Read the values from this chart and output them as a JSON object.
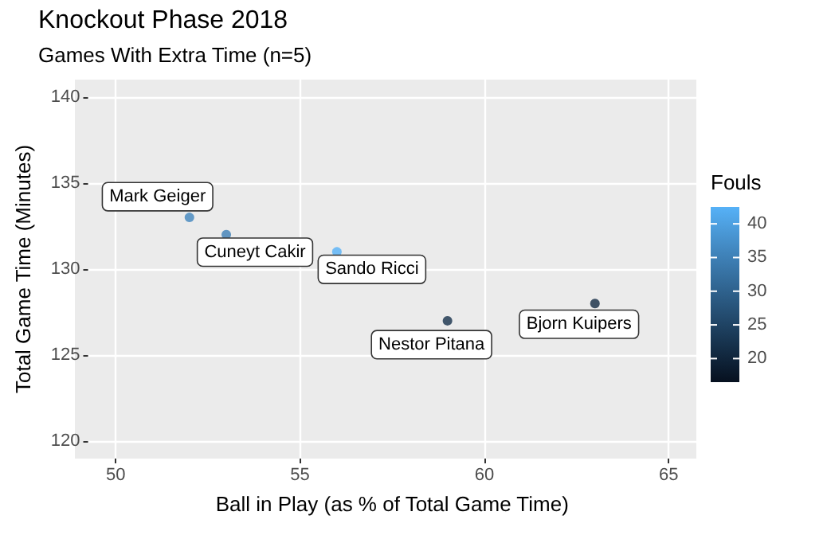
{
  "chart_data": {
    "type": "scatter",
    "title": "Knockout Phase 2018",
    "subtitle": "Games With Extra Time (n=5)",
    "xlabel": "Ball in Play (as % of Total Game Time)",
    "ylabel": "Total Game Time (Minutes)",
    "legend_title": "Fouls",
    "x": [
      52,
      53,
      56,
      59,
      63
    ],
    "values": [
      133,
      132,
      131,
      127,
      128
    ],
    "cvalues": [
      36,
      35,
      43,
      22,
      21
    ],
    "colors": [
      "#4186be",
      "#3e80b6",
      "#56b1f7",
      "#16314b",
      "#132b43"
    ],
    "clim": [
      16.5,
      42.5
    ],
    "cticks": [
      20,
      25,
      30,
      35,
      40
    ],
    "xlim": [
      49.25,
      65.75
    ],
    "xticks": [
      50,
      55,
      60,
      65
    ],
    "ylim": [
      119,
      141
    ],
    "yticks": [
      120,
      125,
      130,
      135,
      140
    ],
    "grid": true,
    "marker": "circle",
    "annotations": [
      {
        "text": "Mark Geiger",
        "x": 52,
        "y": 133
      },
      {
        "text": "Cuneyt Cakir",
        "x": 53,
        "y": 132
      },
      {
        "text": "Sando Ricci",
        "x": 56,
        "y": 131
      },
      {
        "text": "Nestor Pitana",
        "x": 59,
        "y": 127
      },
      {
        "text": "Bjorn Kuipers",
        "x": 63,
        "y": 128
      }
    ]
  }
}
